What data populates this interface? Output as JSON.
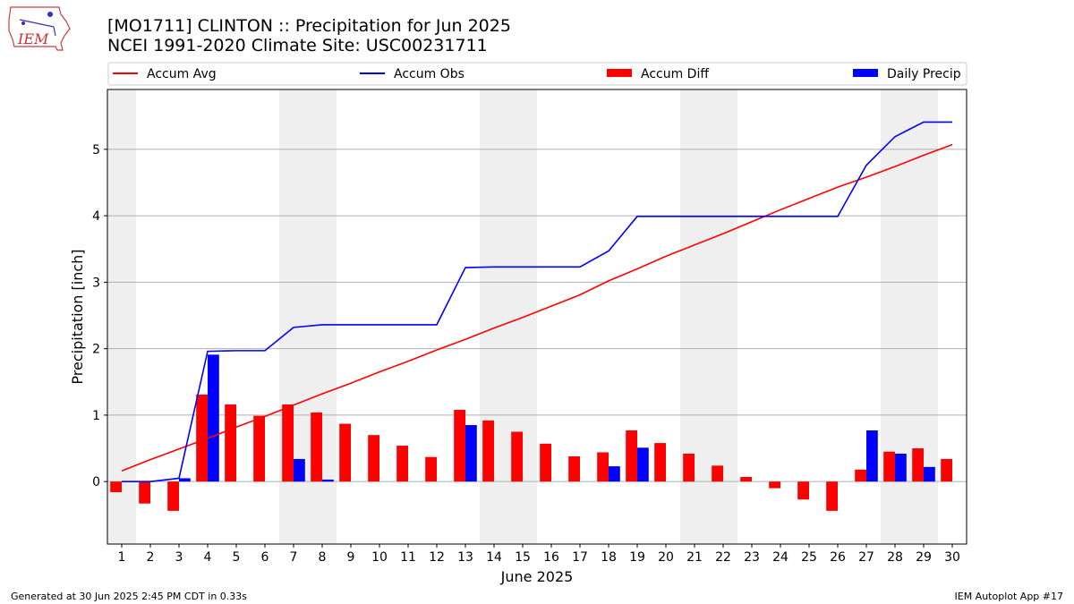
{
  "header": {
    "title_line1": "[MO1711] CLINTON :: Precipitation for Jun 2025",
    "title_line2": "NCEI 1991-2020 Climate Site: USC00231711",
    "logo_text": "IEM"
  },
  "footer": {
    "left": "Generated at 30 Jun 2025 2:45 PM CDT in 0.33s",
    "right": "IEM Autoplot App #17"
  },
  "colors": {
    "avg": "#ff0000",
    "obs": "#0000ff",
    "diff": "#ff0000",
    "daily": "#0000ff",
    "weekend": "#efefef",
    "grid": "#b0b0b0"
  },
  "chart_data": {
    "type": "bar",
    "xlabel": "June 2025",
    "ylabel": "Precipitation [inch]",
    "xlim": [
      0.5,
      30.5
    ],
    "ylim": [
      -0.94,
      5.9
    ],
    "yticks": [
      0,
      1,
      2,
      3,
      4,
      5
    ],
    "grid": "horizontal",
    "legend_position": "top",
    "weekend_shading": [
      [
        0.5,
        1.5
      ],
      [
        6.5,
        8.5
      ],
      [
        13.5,
        15.5
      ],
      [
        20.5,
        22.5
      ],
      [
        27.5,
        29.5
      ]
    ],
    "days": [
      1,
      2,
      3,
      4,
      5,
      6,
      7,
      8,
      9,
      10,
      11,
      12,
      13,
      14,
      15,
      16,
      17,
      18,
      19,
      20,
      21,
      22,
      23,
      24,
      25,
      26,
      27,
      28,
      29,
      30
    ],
    "series": [
      {
        "name": "Accum Avg",
        "kind": "line",
        "values": [
          0.16,
          0.33,
          0.49,
          0.65,
          0.82,
          0.98,
          1.15,
          1.32,
          1.48,
          1.65,
          1.81,
          1.98,
          2.14,
          2.31,
          2.47,
          2.64,
          2.81,
          3.02,
          3.2,
          3.39,
          3.56,
          3.73,
          3.91,
          4.09,
          4.26,
          4.43,
          4.58,
          4.74,
          4.91,
          5.07
        ]
      },
      {
        "name": "Accum Obs",
        "kind": "line",
        "values": [
          0,
          0,
          0.05,
          1.96,
          1.97,
          1.97,
          2.32,
          2.36,
          2.36,
          2.36,
          2.36,
          2.36,
          3.22,
          3.23,
          3.23,
          3.23,
          3.23,
          3.47,
          3.99,
          3.99,
          3.99,
          3.99,
          3.99,
          3.99,
          3.99,
          3.99,
          4.76,
          5.19,
          5.41,
          5.41
        ]
      },
      {
        "name": "Accum Diff",
        "kind": "bar",
        "values": [
          -0.16,
          -0.33,
          -0.44,
          1.31,
          1.16,
          0.99,
          1.16,
          1.04,
          0.87,
          0.7,
          0.54,
          0.37,
          1.08,
          0.92,
          0.75,
          0.57,
          0.38,
          0.44,
          0.77,
          0.58,
          0.42,
          0.24,
          0.07,
          -0.1,
          -0.27,
          -0.44,
          0.18,
          0.45,
          0.5,
          0.34
        ]
      },
      {
        "name": "Daily Precip",
        "kind": "bar",
        "values": [
          0,
          0,
          0.05,
          1.91,
          0,
          0,
          0.34,
          0.03,
          0,
          0,
          0,
          0,
          0.85,
          0,
          0,
          0,
          0,
          0.23,
          0.51,
          0,
          0,
          0,
          0,
          0,
          0,
          0,
          0.77,
          0.42,
          0.22,
          0
        ]
      }
    ]
  }
}
